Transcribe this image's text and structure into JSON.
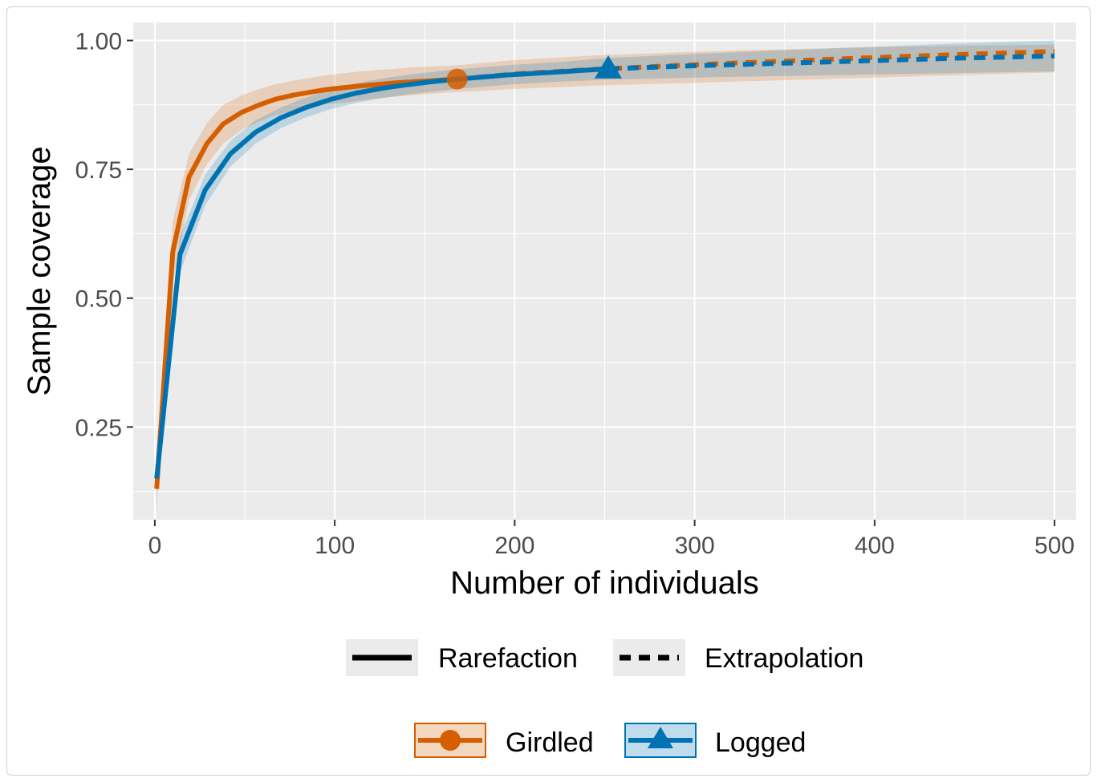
{
  "chart_data": {
    "type": "line",
    "xlabel": "Number of individuals",
    "ylabel": "Sample coverage",
    "xlim": [
      -12,
      512
    ],
    "ylim": [
      0.07,
      1.035
    ],
    "x_ticks": [
      "0",
      "100",
      "200",
      "300",
      "400",
      "500"
    ],
    "y_ticks": [
      "0.25",
      "0.50",
      "0.75",
      "1.00"
    ],
    "grid": true,
    "legend_placement": "bottom",
    "linetype_legend": [
      {
        "label": "Rarefaction",
        "style": "solid"
      },
      {
        "label": "Extrapolation",
        "style": "dashed"
      }
    ],
    "series": [
      {
        "name": "Girdled",
        "color": "#D55E00",
        "marker": "circle",
        "observed": {
          "x": 168,
          "y": 0.925
        },
        "rarefaction": {
          "x": [
            1,
            10,
            19,
            29,
            38,
            48,
            58,
            67,
            77,
            87,
            96,
            106,
            115,
            125,
            134,
            144,
            154,
            163,
            168
          ],
          "y": [
            0.13,
            0.59,
            0.735,
            0.8,
            0.838,
            0.86,
            0.875,
            0.886,
            0.894,
            0.9,
            0.905,
            0.909,
            0.912,
            0.915,
            0.918,
            0.92,
            0.922,
            0.924,
            0.925
          ]
        },
        "extrapolation": {
          "x": [
            168,
            200,
            250,
            300,
            350,
            400,
            450,
            500
          ],
          "y": [
            0.925,
            0.935,
            0.945,
            0.953,
            0.96,
            0.967,
            0.973,
            0.979
          ]
        },
        "ci_lower": [
          0.09,
          0.53,
          0.69,
          0.76,
          0.8,
          0.826,
          0.843,
          0.855,
          0.864,
          0.87,
          0.876,
          0.88,
          0.884,
          0.888,
          0.891,
          0.894,
          0.897,
          0.899,
          0.9,
          0.906,
          0.913,
          0.918,
          0.923,
          0.928,
          0.933,
          0.938
        ],
        "ci_upper": [
          0.17,
          0.65,
          0.78,
          0.84,
          0.875,
          0.893,
          0.906,
          0.915,
          0.922,
          0.928,
          0.933,
          0.937,
          0.94,
          0.943,
          0.945,
          0.948,
          0.95,
          0.951,
          0.952,
          0.962,
          0.972,
          0.978,
          0.983,
          0.987,
          0.99,
          0.992
        ]
      },
      {
        "name": "Logged",
        "color": "#0072B2",
        "marker": "triangle",
        "observed": {
          "x": 252,
          "y": 0.945
        },
        "rarefaction": {
          "x": [
            1,
            14,
            28,
            42,
            56,
            70,
            84,
            98,
            112,
            126,
            140,
            154,
            168,
            182,
            196,
            210,
            224,
            238,
            252
          ],
          "y": [
            0.15,
            0.585,
            0.71,
            0.78,
            0.822,
            0.85,
            0.87,
            0.886,
            0.898,
            0.907,
            0.914,
            0.92,
            0.925,
            0.929,
            0.933,
            0.936,
            0.939,
            0.942,
            0.945
          ]
        },
        "extrapolation": {
          "x": [
            252,
            300,
            350,
            400,
            450,
            500
          ],
          "y": [
            0.945,
            0.951,
            0.956,
            0.961,
            0.966,
            0.97
          ]
        },
        "ci_lower": [
          0.12,
          0.55,
          0.68,
          0.755,
          0.8,
          0.83,
          0.851,
          0.867,
          0.879,
          0.888,
          0.895,
          0.901,
          0.906,
          0.91,
          0.914,
          0.917,
          0.92,
          0.922,
          0.924,
          0.928,
          0.931,
          0.934,
          0.937,
          0.94
        ],
        "ci_upper": [
          0.18,
          0.62,
          0.74,
          0.805,
          0.845,
          0.87,
          0.889,
          0.905,
          0.917,
          0.926,
          0.933,
          0.939,
          0.944,
          0.948,
          0.952,
          0.955,
          0.958,
          0.962,
          0.966,
          0.974,
          0.981,
          0.988,
          0.995,
          1.0
        ]
      }
    ]
  }
}
